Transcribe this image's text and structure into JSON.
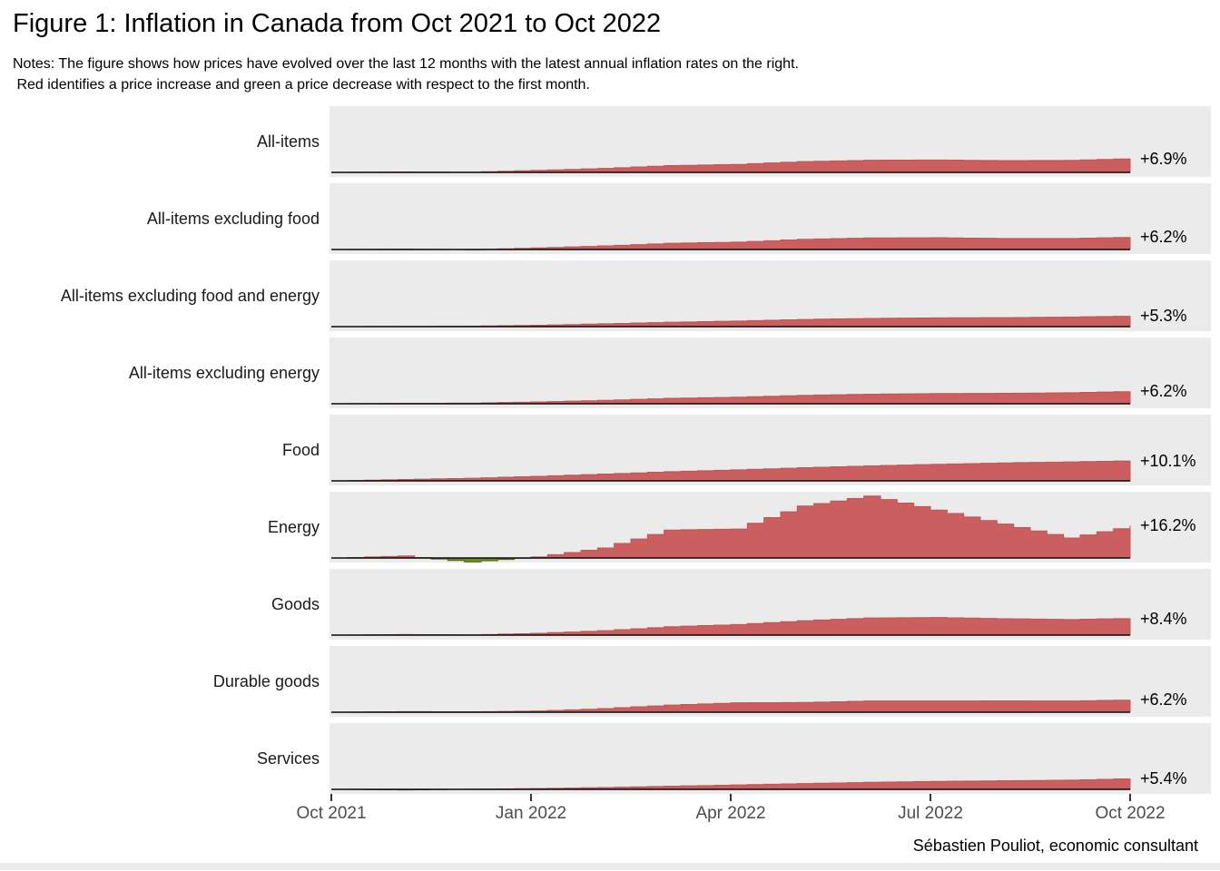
{
  "title": "Figure 1: Inflation in Canada from Oct 2021 to Oct 2022",
  "notes_line1": "Notes: The figure shows how prices have evolved over the last 12 months with the latest annual inflation rates on the right.",
  "notes_line2": " Red identifies a price increase and green a price decrease with respect to the first month.",
  "footer_credit": "Sébastien Pouliot, economic consultant",
  "colors": {
    "increase_fill": "#CB5F5F",
    "increase_edge": "#BE5454",
    "decrease_fill": "#6F8B21",
    "decrease_edge": "#4E661A",
    "panel_background": "#EBEBEB",
    "baseline": "#0a0a0a",
    "axis_text": "#4D4D4D"
  },
  "chart_data": {
    "type": "area",
    "layout": "small multiples, one horizontal panel per category, shared x axis, baseline at first month, legend none",
    "x_months": [
      "Oct 2021",
      "Nov 2021",
      "Dec 2021",
      "Jan 2022",
      "Feb 2022",
      "Mar 2022",
      "Apr 2022",
      "May 2022",
      "Jun 2022",
      "Jul 2022",
      "Aug 2022",
      "Sep 2022",
      "Oct 2022"
    ],
    "x_tick_labels": [
      "Oct 2021",
      "Jan 2022",
      "Apr 2022",
      "Jul 2022",
      "Oct 2022"
    ],
    "x_tick_month_index": [
      0,
      3,
      6,
      9,
      12
    ],
    "y_unit": "cumulative % price change since Oct 2021 (red = increase, green = decrease; estimated from figure)",
    "series": [
      {
        "label": "All-items",
        "annual_rate_label": "+6.9%",
        "annual_rate": 6.9,
        "values": [
          0,
          0.2,
          0.1,
          1.0,
          2.0,
          3.4,
          4.0,
          5.4,
          6.1,
          6.2,
          5.9,
          6.0,
          6.9
        ]
      },
      {
        "label": "All-items excluding food",
        "annual_rate_label": "+6.2%",
        "annual_rate": 6.2,
        "values": [
          0,
          0.2,
          -0.1,
          0.8,
          1.8,
          3.1,
          3.7,
          5.1,
          5.8,
          5.9,
          5.5,
          5.5,
          6.2
        ]
      },
      {
        "label": "All-items excluding food and energy",
        "annual_rate_label": "+5.3%",
        "annual_rate": 5.3,
        "values": [
          0,
          0.1,
          0.2,
          0.7,
          1.4,
          2.2,
          2.8,
          3.6,
          4.1,
          4.4,
          4.5,
          4.8,
          5.3
        ]
      },
      {
        "label": "All-items excluding energy",
        "annual_rate_label": "+6.2%",
        "annual_rate": 6.2,
        "values": [
          0,
          0.2,
          0.3,
          0.9,
          1.7,
          2.7,
          3.3,
          4.2,
          4.8,
          5.1,
          5.2,
          5.5,
          6.2
        ]
      },
      {
        "label": "Food",
        "annual_rate_label": "+10.1%",
        "annual_rate": 10.1,
        "values": [
          0,
          0.7,
          1.3,
          2.3,
          3.4,
          4.6,
          5.5,
          6.6,
          7.5,
          8.3,
          9.0,
          9.5,
          10.1
        ]
      },
      {
        "label": "Energy",
        "annual_rate_label": "+16.2%",
        "annual_rate": 16.2,
        "values": [
          0,
          1.0,
          -2.0,
          0.5,
          5.0,
          14.0,
          14.5,
          26.0,
          31.0,
          24.0,
          17.0,
          10.0,
          16.2
        ]
      },
      {
        "label": "Goods",
        "annual_rate_label": "+8.4%",
        "annual_rate": 8.4,
        "values": [
          0,
          0.3,
          0.1,
          0.9,
          2.2,
          4.2,
          5.3,
          7.2,
          8.6,
          8.8,
          8.2,
          7.8,
          8.4
        ]
      },
      {
        "label": "Durable goods",
        "annual_rate_label": "+6.2%",
        "annual_rate": 6.2,
        "values": [
          0,
          0.3,
          0.2,
          0.6,
          1.8,
          3.6,
          4.7,
          4.9,
          5.6,
          5.6,
          5.7,
          5.6,
          6.2
        ]
      },
      {
        "label": "Services",
        "annual_rate_label": "+5.4%",
        "annual_rate": 5.4,
        "values": [
          0,
          -0.3,
          0.1,
          0.4,
          0.9,
          1.6,
          2.2,
          2.9,
          3.5,
          4.0,
          4.3,
          4.6,
          5.4
        ]
      }
    ]
  }
}
